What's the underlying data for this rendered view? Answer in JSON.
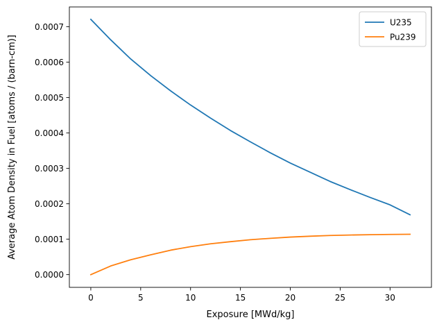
{
  "chart_data": {
    "type": "line",
    "title": "",
    "xlabel": "Exposure [MWd/kg]",
    "ylabel": "Average Atom Density in Fuel [atoms / (barn-cm)]",
    "xlim": [
      -2.15,
      34.15
    ],
    "ylim": [
      -3.6e-05,
      0.000756
    ],
    "x_ticks": [
      0,
      5,
      10,
      15,
      20,
      25,
      30
    ],
    "x_tick_labels": [
      "0",
      "5",
      "10",
      "15",
      "20",
      "25",
      "30"
    ],
    "y_ticks": [
      0,
      0.0001,
      0.0002,
      0.0003,
      0.0004,
      0.0005,
      0.0006,
      0.0007
    ],
    "y_tick_labels": [
      "0.0000",
      "0.0001",
      "0.0002",
      "0.0003",
      "0.0004",
      "0.0005",
      "0.0006",
      "0.0007"
    ],
    "grid": false,
    "legend": {
      "position": "top-right"
    },
    "x": [
      0,
      2,
      4,
      6,
      8,
      10,
      12,
      14,
      16,
      18,
      20,
      22,
      24,
      26,
      28,
      30,
      32
    ],
    "series": [
      {
        "name": "U235",
        "color": "#1f77b4",
        "values": [
          0.000721,
          0.000663,
          0.000609,
          0.000562,
          0.000519,
          0.000479,
          0.000442,
          0.000407,
          0.000375,
          0.000344,
          0.000315,
          0.000289,
          0.000263,
          0.00024,
          0.000218,
          0.000197,
          0.000169
        ]
      },
      {
        "name": "Pu239",
        "color": "#ff7f0e",
        "values": [
          0.0,
          2.45e-05,
          4.2e-05,
          5.6e-05,
          6.9e-05,
          7.9e-05,
          8.7e-05,
          9.3e-05,
          9.85e-05,
          0.0001025,
          0.000106,
          0.0001085,
          0.0001105,
          0.0001118,
          0.0001128,
          0.0001135,
          0.000114
        ]
      }
    ]
  }
}
